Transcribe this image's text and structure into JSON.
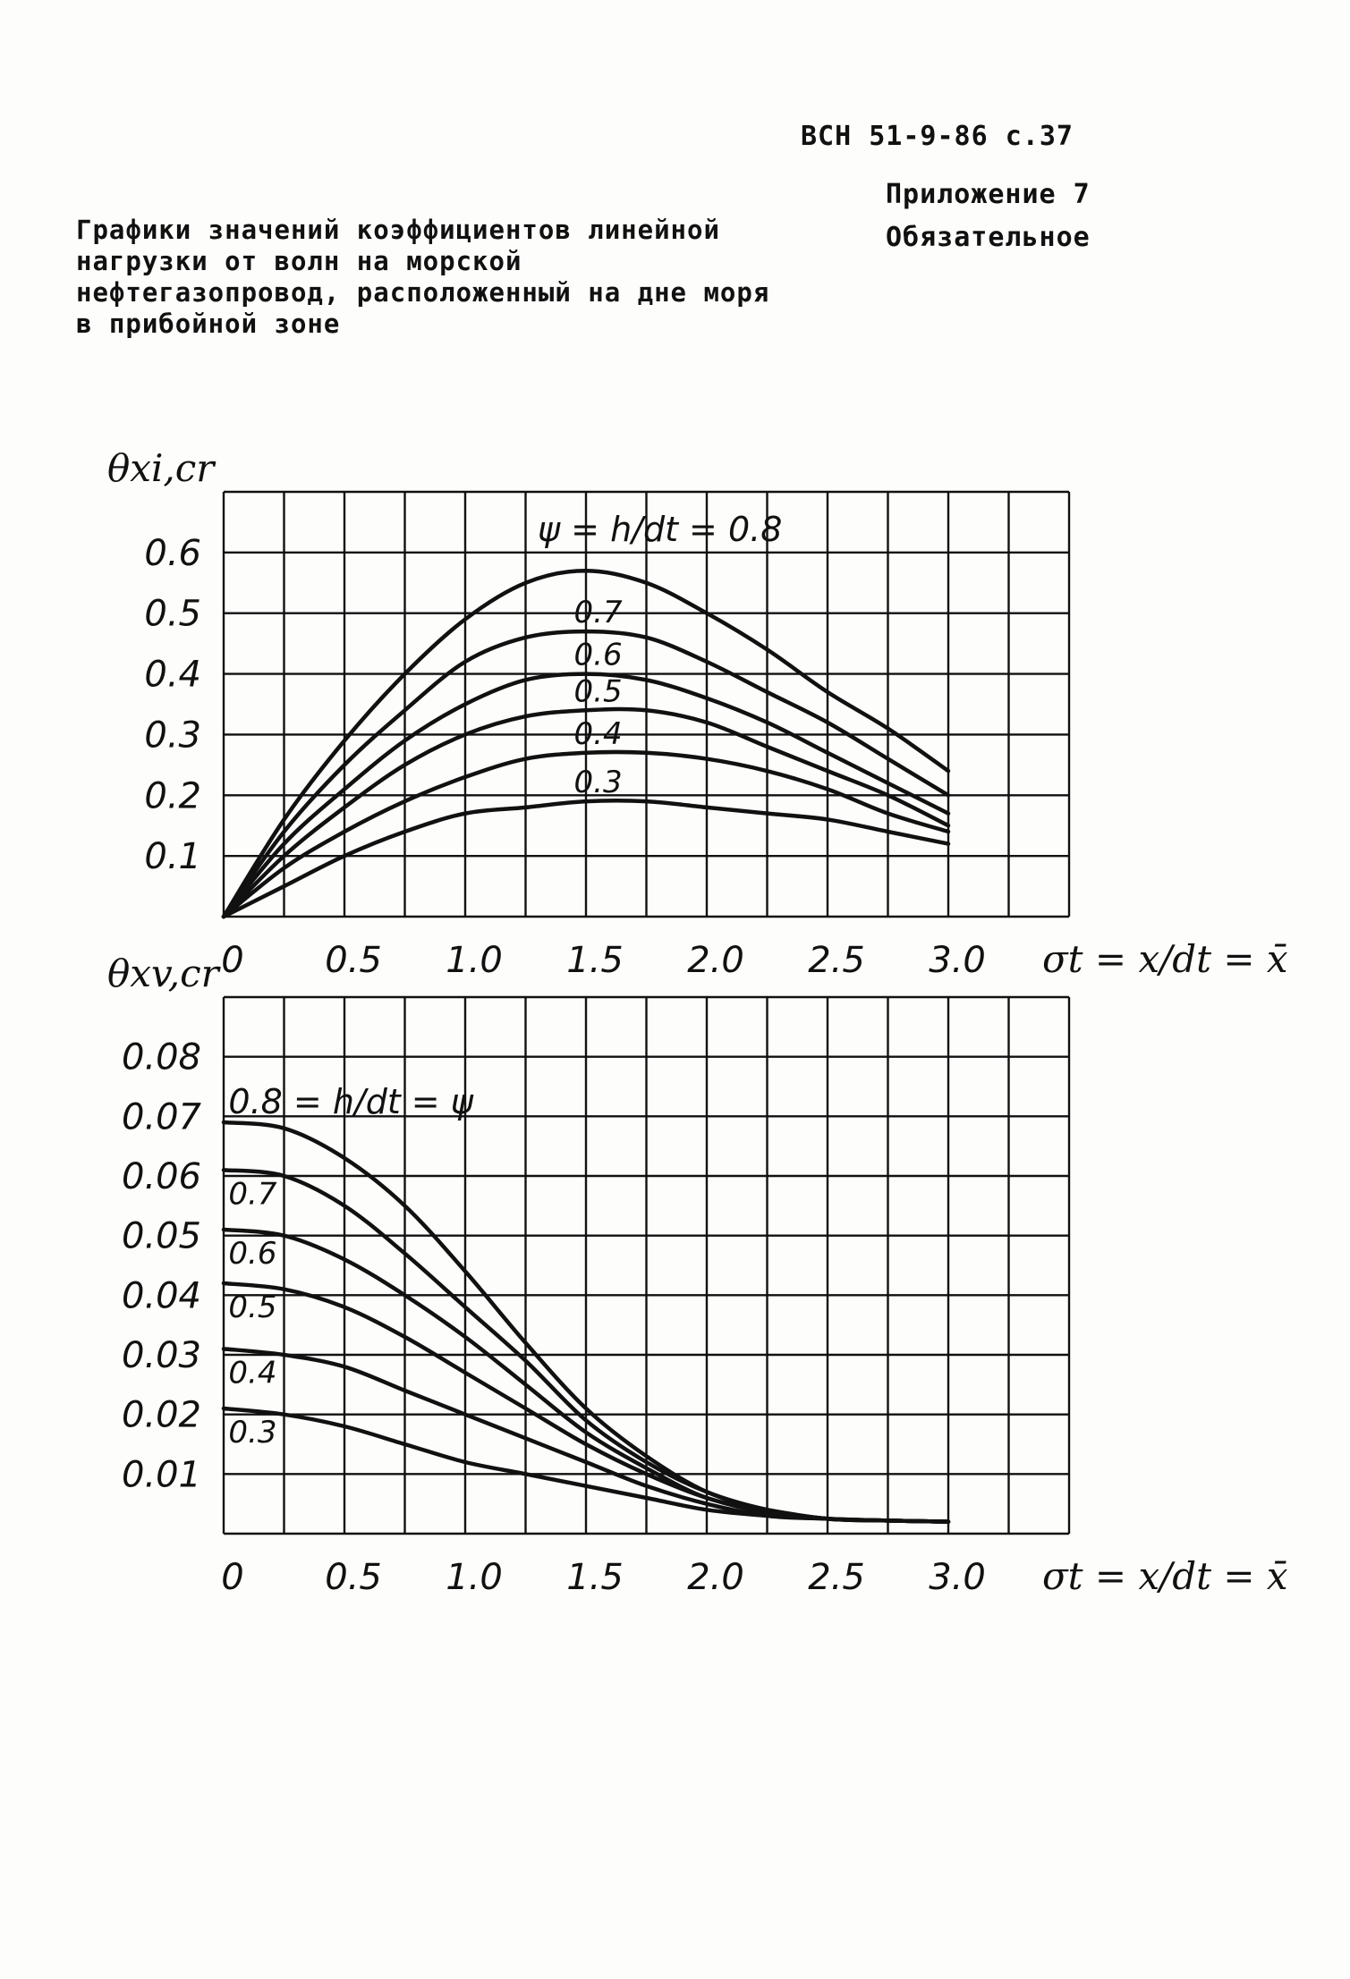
{
  "header": {
    "doc_code": "ВСН 51-9-86 с.37",
    "appendix": "Приложение 7",
    "mandatory": "Обязательное",
    "title": "Графики значений коэффициентов линейной нагрузки от волн на морской нефтегазопровод, расположенный на дне моря в прибойной зоне"
  },
  "chart_data": [
    {
      "type": "line",
      "ylabel": "θxi,cr",
      "xlabel": "σt = x/dt = x̄",
      "xlim": [
        0,
        3.5
      ],
      "ylim": [
        0,
        0.7
      ],
      "x_ticks": [
        "0",
        "0.5",
        "1.0",
        "1.5",
        "2.0",
        "2.5",
        "3.0"
      ],
      "y_ticks": [
        "0.1",
        "0.2",
        "0.3",
        "0.4",
        "0.5",
        "0.6"
      ],
      "legend_text": "ψ = h/dt = 0.8",
      "x": [
        0,
        0.25,
        0.5,
        0.75,
        1.0,
        1.25,
        1.5,
        1.75,
        2.0,
        2.25,
        2.5,
        2.75,
        3.0
      ],
      "series": [
        {
          "name": "0.8",
          "values": [
            0,
            0.16,
            0.29,
            0.4,
            0.49,
            0.55,
            0.57,
            0.55,
            0.5,
            0.44,
            0.37,
            0.31,
            0.24
          ]
        },
        {
          "name": "0.7",
          "values": [
            0,
            0.14,
            0.25,
            0.34,
            0.42,
            0.46,
            0.47,
            0.46,
            0.42,
            0.37,
            0.32,
            0.26,
            0.2
          ]
        },
        {
          "name": "0.6",
          "values": [
            0,
            0.12,
            0.21,
            0.29,
            0.35,
            0.39,
            0.4,
            0.39,
            0.36,
            0.32,
            0.27,
            0.22,
            0.17
          ]
        },
        {
          "name": "0.5",
          "values": [
            0,
            0.1,
            0.18,
            0.25,
            0.3,
            0.33,
            0.34,
            0.34,
            0.32,
            0.28,
            0.24,
            0.2,
            0.15
          ]
        },
        {
          "name": "0.4",
          "values": [
            0,
            0.08,
            0.14,
            0.19,
            0.23,
            0.26,
            0.27,
            0.27,
            0.26,
            0.24,
            0.21,
            0.17,
            0.14
          ]
        },
        {
          "name": "0.3",
          "values": [
            0,
            0.05,
            0.1,
            0.14,
            0.17,
            0.18,
            0.19,
            0.19,
            0.18,
            0.17,
            0.16,
            0.14,
            0.12
          ]
        }
      ]
    },
    {
      "type": "line",
      "ylabel": "θxv,cr",
      "xlabel": "σt = x/dt = x̄",
      "xlim": [
        0,
        3.5
      ],
      "ylim": [
        0,
        0.09
      ],
      "x_ticks": [
        "0",
        "0.5",
        "1.0",
        "1.5",
        "2.0",
        "2.5",
        "3.0"
      ],
      "y_ticks": [
        "0.01",
        "0.02",
        "0.03",
        "0.04",
        "0.05",
        "0.06",
        "0.07",
        "0.08"
      ],
      "legend_text": "0.8 = h/dt = ψ",
      "x": [
        0,
        0.25,
        0.5,
        0.75,
        1.0,
        1.25,
        1.5,
        1.75,
        2.0,
        2.25,
        2.5,
        2.75,
        3.0
      ],
      "series": [
        {
          "name": "0.8",
          "values": [
            0.069,
            0.068,
            0.063,
            0.055,
            0.044,
            0.032,
            0.021,
            0.013,
            0.007,
            0.004,
            0.0025,
            0.0022,
            0.002
          ]
        },
        {
          "name": "0.7",
          "values": [
            0.061,
            0.06,
            0.055,
            0.047,
            0.038,
            0.029,
            0.019,
            0.012,
            0.007,
            0.004,
            0.0025,
            0.0022,
            0.002
          ]
        },
        {
          "name": "0.6",
          "values": [
            0.051,
            0.05,
            0.046,
            0.04,
            0.033,
            0.025,
            0.017,
            0.011,
            0.006,
            0.004,
            0.0025,
            0.0022,
            0.002
          ]
        },
        {
          "name": "0.5",
          "values": [
            0.042,
            0.041,
            0.038,
            0.033,
            0.027,
            0.021,
            0.015,
            0.01,
            0.006,
            0.0035,
            0.0025,
            0.0022,
            0.002
          ]
        },
        {
          "name": "0.4",
          "values": [
            0.031,
            0.03,
            0.028,
            0.024,
            0.02,
            0.016,
            0.012,
            0.008,
            0.005,
            0.003,
            0.0025,
            0.0022,
            0.002
          ]
        },
        {
          "name": "0.3",
          "values": [
            0.021,
            0.02,
            0.018,
            0.015,
            0.012,
            0.01,
            0.008,
            0.006,
            0.004,
            0.003,
            0.0025,
            0.0022,
            0.002
          ]
        }
      ]
    }
  ]
}
